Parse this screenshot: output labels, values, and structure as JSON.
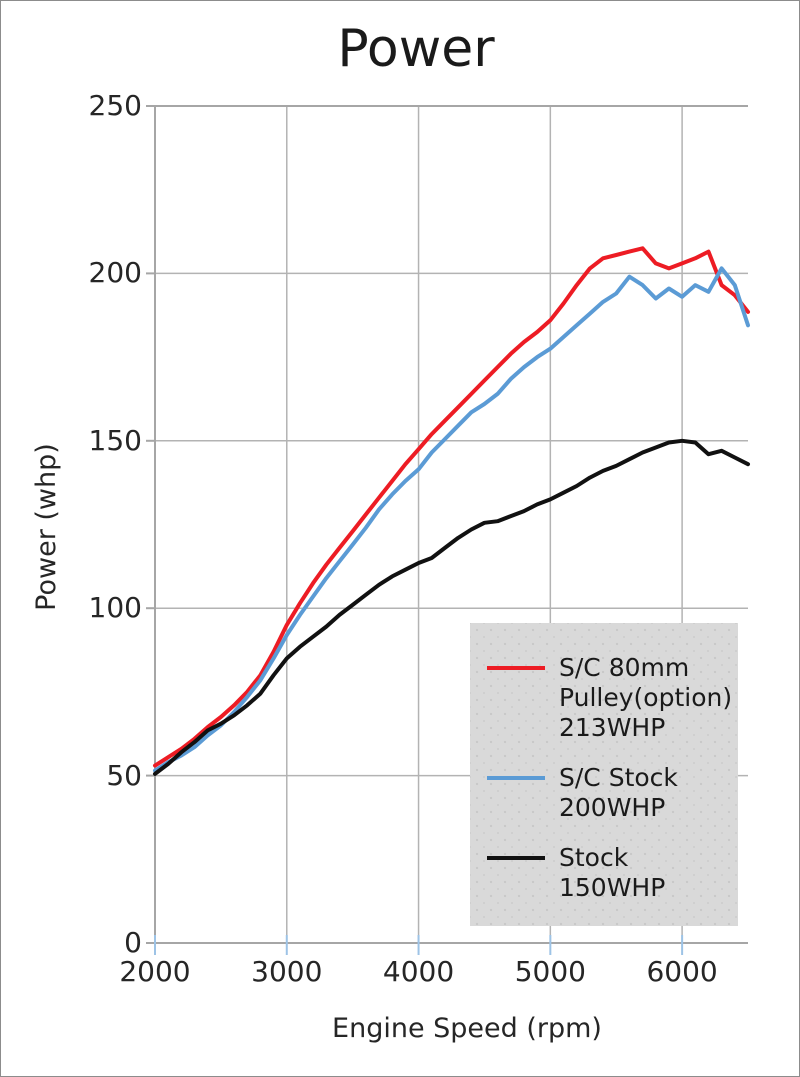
{
  "chart_data": {
    "type": "line",
    "title": "Power",
    "xlabel": "Engine Speed (rpm)",
    "ylabel": "Power (whp)",
    "xlim": [
      2000,
      6500
    ],
    "ylim": [
      0,
      250
    ],
    "x_ticks": [
      2000,
      3000,
      4000,
      5000,
      6000
    ],
    "y_ticks": [
      0,
      50,
      100,
      150,
      200,
      250
    ],
    "grid": true,
    "legend_position": "lower-right",
    "x_start": 2000,
    "x_step": 100,
    "series": [
      {
        "name": "S/C 80mm Pulley(option) 213WHP",
        "color": "#ed1c24",
        "values": [
          53,
          55.5,
          58,
          61,
          64.5,
          67.5,
          71,
          75,
          80,
          87,
          95,
          101.5,
          107.5,
          113,
          118,
          123,
          128,
          133,
          138,
          143,
          147.5,
          152,
          156,
          160,
          164,
          168,
          172,
          176,
          179.5,
          182.5,
          186,
          191,
          196.5,
          201.5,
          204.5,
          205.5,
          206.5,
          207.5,
          203,
          201.5,
          203,
          204.5,
          206.5,
          196.5,
          193.5,
          188.5
        ]
      },
      {
        "name": "S/C Stock 200WHP",
        "color": "#5b9bd5",
        "values": [
          51.5,
          54,
          56,
          58.5,
          62,
          65,
          69,
          73.5,
          78.5,
          85,
          92,
          98,
          103.5,
          109,
          114,
          119,
          124,
          129.5,
          134,
          138,
          141.5,
          146.5,
          150.5,
          154.5,
          158.5,
          161,
          164,
          168.5,
          172,
          175,
          177.5,
          181,
          184.5,
          188,
          191.5,
          194,
          199,
          196.5,
          192.5,
          195.5,
          193,
          196.5,
          194.5,
          201.5,
          196.5,
          184.5
        ]
      },
      {
        "name": "Stock 150WHP",
        "color": "#111111",
        "values": [
          50.5,
          53.5,
          57,
          60,
          63.5,
          65.5,
          68,
          71,
          74.5,
          80,
          85,
          88.5,
          91.5,
          94.5,
          98,
          101,
          104,
          107,
          109.5,
          111.5,
          113.5,
          115,
          118,
          121,
          123.5,
          125.5,
          126,
          127.5,
          129,
          131,
          132.5,
          134.5,
          136.5,
          139,
          141,
          142.5,
          144.5,
          146.5,
          148,
          149.5,
          150,
          149.5,
          146,
          147,
          145,
          143
        ]
      }
    ]
  },
  "legend": {
    "items": [
      {
        "color": "#ed1c24",
        "lines": [
          "S/C 80mm",
          "Pulley(option)",
          "213WHP"
        ]
      },
      {
        "color": "#5b9bd5",
        "lines": [
          "S/C Stock",
          "200WHP"
        ]
      },
      {
        "color": "#111111",
        "lines": [
          "Stock",
          "150WHP"
        ]
      }
    ]
  },
  "colors": {
    "grid": "#b3b3b3",
    "axis": "#a6a6a6",
    "x_tick_mark": "#9dc3e6",
    "text": "#262626",
    "legend_bg": "#d9d9d9"
  }
}
